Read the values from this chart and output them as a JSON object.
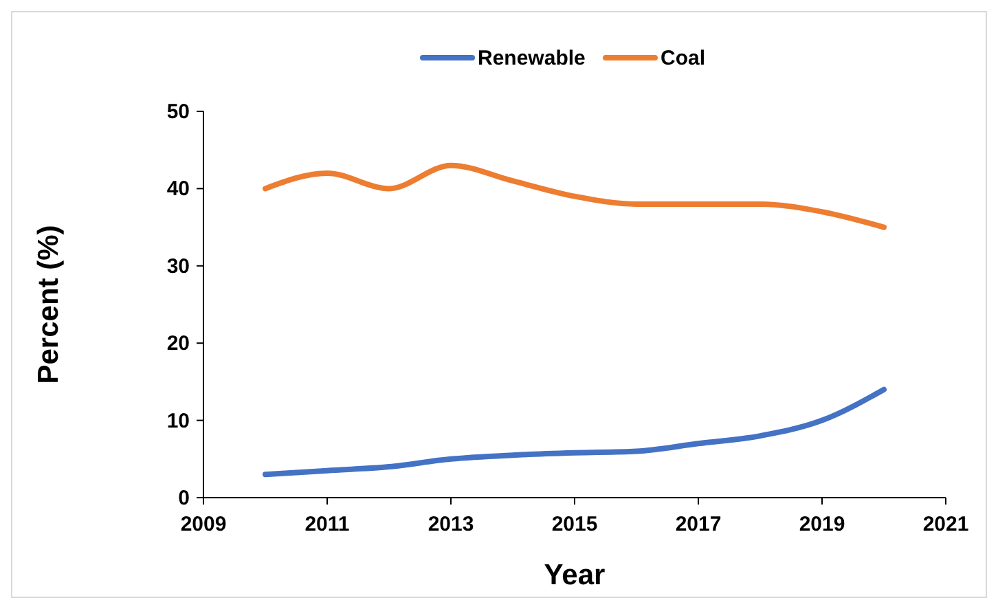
{
  "chart_data": {
    "type": "line",
    "xlabel": "Year",
    "ylabel": "Percent (%)",
    "x": [
      2010,
      2011,
      2012,
      2013,
      2014,
      2015,
      2016,
      2017,
      2018,
      2019,
      2020
    ],
    "series": [
      {
        "name": "Renewable",
        "color": "#4472c4",
        "values": [
          3,
          3.5,
          4,
          5,
          5.5,
          5.8,
          6,
          7,
          8,
          10,
          14
        ]
      },
      {
        "name": "Coal",
        "color": "#ed7d31",
        "values": [
          40,
          42,
          40,
          43,
          41,
          39,
          38,
          38,
          38,
          37,
          35
        ]
      }
    ],
    "xlim": [
      2009,
      2021
    ],
    "xticks": [
      2009,
      2011,
      2013,
      2015,
      2017,
      2019,
      2021
    ],
    "ylim": [
      0,
      50
    ],
    "yticks": [
      0,
      10,
      20,
      30,
      40,
      50
    ],
    "grid": false,
    "legend": "top",
    "marker": "none",
    "line_style": "solid"
  }
}
